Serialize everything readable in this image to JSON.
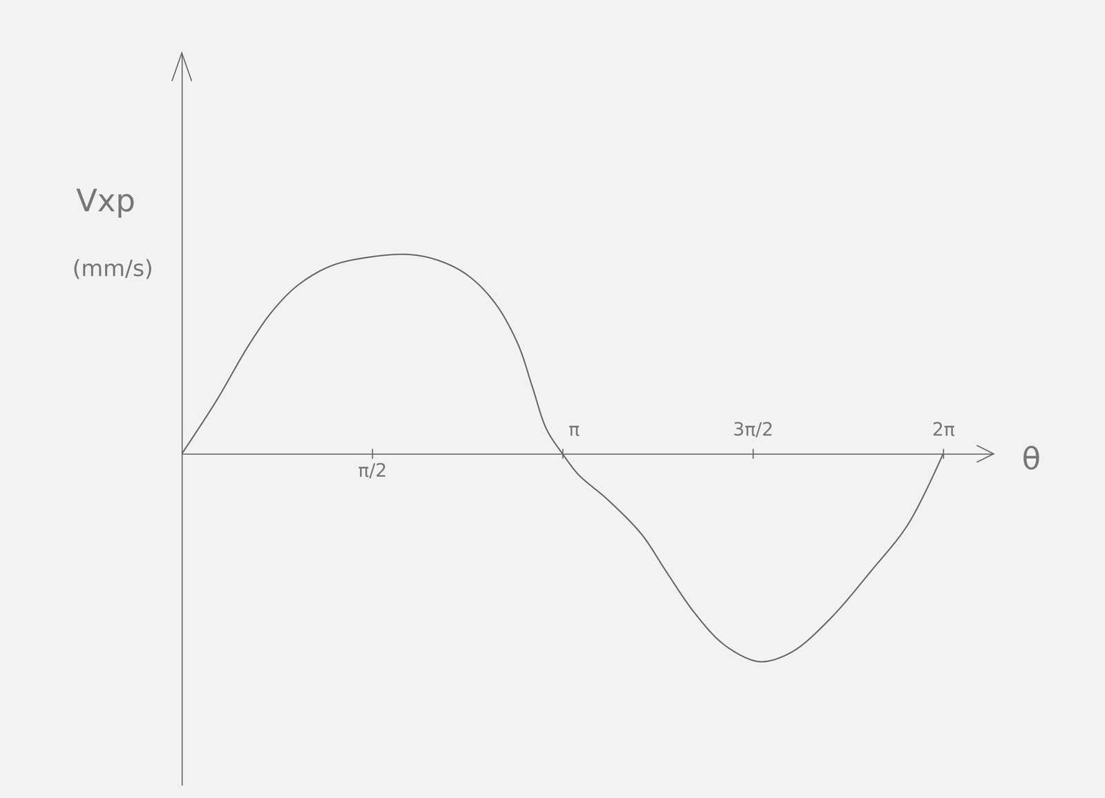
{
  "chart_data": {
    "type": "line",
    "ylabel": "Vxp (mm/s)",
    "xlabel": "θ",
    "x": [
      0,
      0.284,
      0.555,
      0.758,
      0.961,
      1.232,
      1.571,
      1.882,
      2.115,
      2.349,
      2.582,
      2.776,
      2.893,
      3.01,
      3.142,
      3.275,
      3.513,
      3.798,
      3.989,
      4.227,
      4.465,
      4.703,
      4.826,
      5.05,
      5.348,
      5.696,
      5.994,
      6.283
    ],
    "values": [
      0,
      26.6,
      55.0,
      72.7,
      85.1,
      94.7,
      99.3,
      100.4,
      97.5,
      90.4,
      76.2,
      55.0,
      33.7,
      12.4,
      0,
      -10.6,
      -23.0,
      -40.8,
      -58.5,
      -79.8,
      -95.7,
      -103.9,
      -104.6,
      -99.3,
      -83.3,
      -58.5,
      -35.5,
      0
    ],
    "color": "#6a6a6a",
    "xlim": [
      0,
      6.7
    ],
    "ylim": [
      -167,
      202
    ],
    "xticks": [
      {
        "value": 1.5708,
        "label": "π/2"
      },
      {
        "value": 3.1416,
        "label": "π"
      },
      {
        "value": 4.7124,
        "label": "3π/2"
      },
      {
        "value": 6.2832,
        "label": "2π"
      }
    ],
    "tick_labels": "x",
    "grid": false
  }
}
